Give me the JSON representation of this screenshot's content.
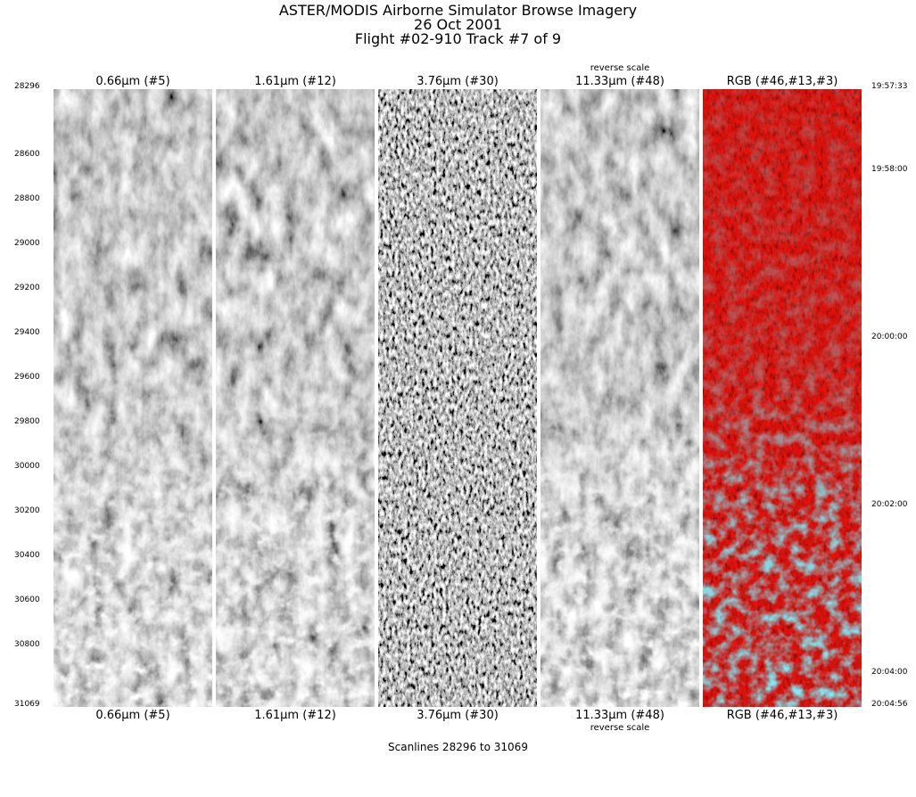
{
  "header": {
    "title": [
      "ASTER/MODIS Airborne Simulator Browse Imagery",
      "26 Oct 2001",
      "Flight #02-910 Track #7 of 9"
    ]
  },
  "panels": [
    {
      "label": "0.66μm (#5)"
    },
    {
      "label": "1.61μm (#12)"
    },
    {
      "label": "3.76μm (#30)"
    },
    {
      "label": "11.33μm (#48)",
      "note": "reverse scale"
    },
    {
      "label": "RGB (#46,#13,#3)"
    }
  ],
  "scanlines": [
    28296,
    28600,
    28800,
    29000,
    29200,
    29400,
    29600,
    29800,
    30000,
    30200,
    30400,
    30600,
    30800,
    31069
  ],
  "times": [
    "19:57:33",
    "19:58:00",
    "20:00:00",
    "20:02:00",
    "20:04:00",
    "20:04:56"
  ],
  "footer": "Scanlines 28296 to 31069"
}
